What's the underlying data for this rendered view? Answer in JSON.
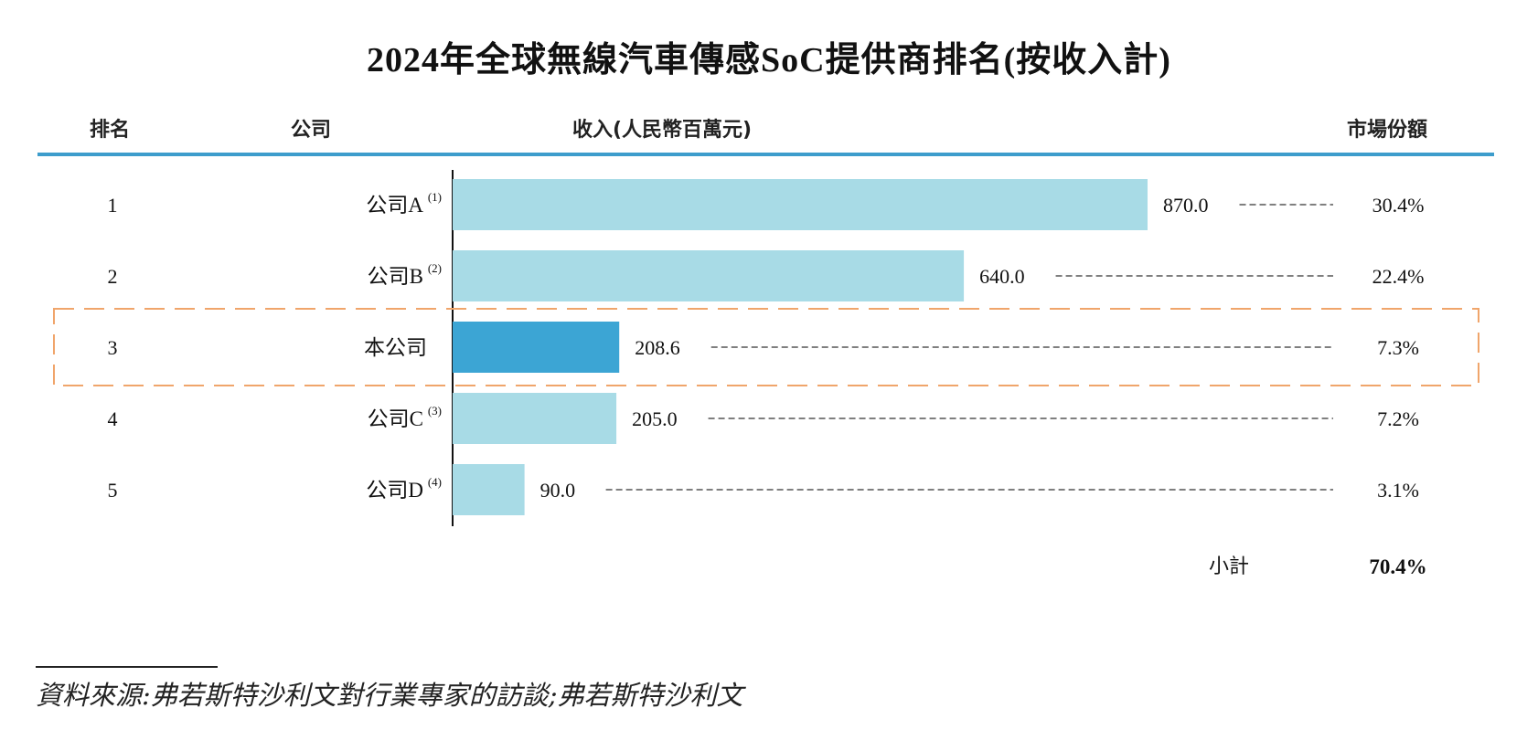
{
  "title": "2024年全球無線汽車傳感SoC提供商排名(按收入計)",
  "columns": {
    "rank": "排名",
    "company": "公司",
    "revenue": "收入(人民幣百萬元)",
    "share": "市場份額"
  },
  "chart_data": {
    "type": "bar",
    "orientation": "horizontal",
    "title": "2024年全球無線汽車傳感SoC提供商排名(按收入計)",
    "categories": [
      "公司A",
      "公司B",
      "本公司",
      "公司C",
      "公司D"
    ],
    "ranks": [
      "1",
      "2",
      "3",
      "4",
      "5"
    ],
    "footnote_marks": [
      "(1)",
      "(2)",
      "",
      "(3)",
      "(4)"
    ],
    "values": [
      870.0,
      640.0,
      208.6,
      205.0,
      90.0
    ],
    "value_labels": [
      "870.0",
      "640.0",
      "208.6",
      "205.0",
      "90.0"
    ],
    "market_share": [
      "30.4%",
      "22.4%",
      "7.3%",
      "7.2%",
      "3.1%"
    ],
    "highlighted_category": "本公司",
    "xlim": [
      0,
      870
    ],
    "grid": false,
    "colors": {
      "bar": "#a8dbe6",
      "highlight_bar": "#3ca5d4",
      "highlight_frame": "#f0a56b",
      "header_rule": "#3d9dcc"
    }
  },
  "subtotal": {
    "label": "小計",
    "value": "70.4%"
  },
  "source": "資料來源:弗若斯特沙利文對行業專家的訪談;弗若斯特沙利文"
}
